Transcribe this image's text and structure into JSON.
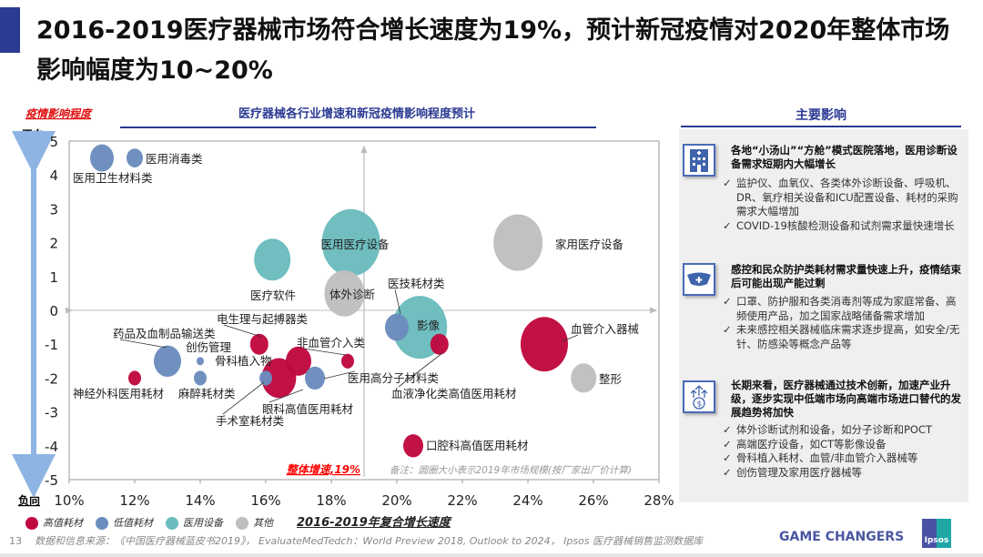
{
  "title": "2016-2019医疗器械市场符合增长速度为19%，预计新冠疫情对2020年整体市场影响幅度为10~20%",
  "chart_data": {
    "type": "scatter",
    "title": "医疗器械各行业增速和新冠疫情影响程度预计",
    "xlabel": "2016-2019年复合增长速度",
    "ylabel": "疫情影响程度",
    "y_top_label": "正向",
    "y_bottom_label": "负向",
    "xlim": [
      10,
      28
    ],
    "ylim": [
      -5,
      5
    ],
    "x_ticks": [
      "10%",
      "12%",
      "14%",
      "16%",
      "18%",
      "20%",
      "22%",
      "24%",
      "26%",
      "28%"
    ],
    "y_ticks": [
      "5",
      "4",
      "3",
      "2",
      "1",
      "0",
      "-1",
      "-2",
      "-3",
      "-4",
      "-5"
    ],
    "reference_x": 19,
    "reference_x_label": "整体增速,19%",
    "note": "备注：圆圈大小表示2019年市场规模(按厂家出厂价计算)",
    "categories": [
      {
        "name": "高值耗材",
        "color": "#c0093f"
      },
      {
        "name": "低值耗材",
        "color": "#6b8cbe"
      },
      {
        "name": "医用设备",
        "color": "#6bbcbd"
      },
      {
        "name": "其他",
        "color": "#bfbfbf"
      }
    ],
    "points": [
      {
        "label": "医用医疗设备",
        "x": 18.6,
        "y": 2,
        "size": 32,
        "cat": 2
      },
      {
        "label": "家用医疗设备",
        "x": 23.7,
        "y": 2,
        "size": 27,
        "cat": 3
      },
      {
        "label": "医疗软件",
        "x": 16.2,
        "y": 1.5,
        "size": 20,
        "cat": 2
      },
      {
        "label": "影像",
        "x": 20.7,
        "y": -0.5,
        "size": 30,
        "cat": 2
      },
      {
        "label": "体外诊断",
        "x": 18.4,
        "y": 0.5,
        "size": 22,
        "cat": 3
      },
      {
        "label": "医技耗材类",
        "x": 20.0,
        "y": -0.5,
        "size": 13,
        "cat": 1
      },
      {
        "label": "医用卫生材料类",
        "x": 11.0,
        "y": 4.5,
        "size": 13,
        "cat": 1
      },
      {
        "label": "医用消毒类",
        "x": 12.0,
        "y": 4.5,
        "size": 9,
        "cat": 1
      },
      {
        "label": "血管介入器械",
        "x": 24.5,
        "y": -1,
        "size": 26,
        "cat": 0
      },
      {
        "label": "整形",
        "x": 25.7,
        "y": -2,
        "size": 14,
        "cat": 3
      },
      {
        "label": "血液净化类高值医用耗材",
        "x": 21.3,
        "y": -1,
        "size": 10,
        "cat": 0
      },
      {
        "label": "口腔科高值医用耗材",
        "x": 20.5,
        "y": -4,
        "size": 11,
        "cat": 0
      },
      {
        "label": "非血管介入类",
        "x": 18.5,
        "y": -1.5,
        "size": 7,
        "cat": 0
      },
      {
        "label": "骨科植入物",
        "x": 17.0,
        "y": -1.5,
        "size": 14,
        "cat": 0
      },
      {
        "label": "眼科高值医用耗材",
        "x": 16.4,
        "y": -2,
        "size": 19,
        "cat": 0
      },
      {
        "label": "手术室耗材类",
        "x": 16.0,
        "y": -2,
        "size": 7,
        "cat": 1
      },
      {
        "label": "医用高分子材料类",
        "x": 17.5,
        "y": -2,
        "size": 11,
        "cat": 1
      },
      {
        "label": "电生理与起搏器类",
        "x": 15.8,
        "y": -1,
        "size": 10,
        "cat": 0
      },
      {
        "label": "药品及血制品输送类",
        "x": 13.0,
        "y": -1.5,
        "size": 15,
        "cat": 1
      },
      {
        "label": "创伤管理",
        "x": 14.0,
        "y": -1.5,
        "size": 4,
        "cat": 1
      },
      {
        "label": "麻醉耗材类",
        "x": 14.0,
        "y": -2,
        "size": 7,
        "cat": 1
      },
      {
        "label": "神经外科医用耗材",
        "x": 12.0,
        "y": -2,
        "size": 7,
        "cat": 0
      }
    ]
  },
  "panel": {
    "title": "主要影响",
    "sections": [
      {
        "icon": "hospital-icon",
        "head": "各地“小汤山”“方舱”模式医院落地，医用诊断设备需求短期内大幅增长",
        "items": [
          "监护仪、血氧仪、各类体外诊断设备、呼吸机、DR、氧疗相关设备和ICU配置设备、耗材的采购需求大幅增加",
          "COVID-19核酸检测设备和试剂需求量快速增长"
        ]
      },
      {
        "icon": "mask-icon",
        "head": "感控和民众防护类耗材需求量快速上升，疫情结束后可能出现产能过剩",
        "items": [
          "口罩、防护服和各类消毒剂等成为家庭常备、高频使用产品，加之国家战略储备需求增加",
          "未来感控相关器械临床需求逐步提高，如安全/无针、防感染等概念产品等"
        ]
      },
      {
        "icon": "money-growth-icon",
        "head": "长期来看，医疗器械通过技术创新，加速产业升级，逐步实现中低端市场向高端市场进口替代的发展趋势将加快",
        "items": [
          "体外诊断试剂和设备，如分子诊断和POCT",
          "高端医疗设备，如CT等影像设备",
          "骨科植入耗材、血管/非血管介入器械等",
          "创伤管理及家用医疗器械等"
        ]
      }
    ]
  },
  "footer": {
    "page": "13",
    "source": "数据和信息来源：《中国医疗器械蓝皮书2019》， EvaluateMedTedch：World Preview 2018, Outlook to 2024， Ipsos 医疗器械销售监测数据库",
    "brand": "GAME CHANGERS",
    "logo": "Ipsos"
  }
}
